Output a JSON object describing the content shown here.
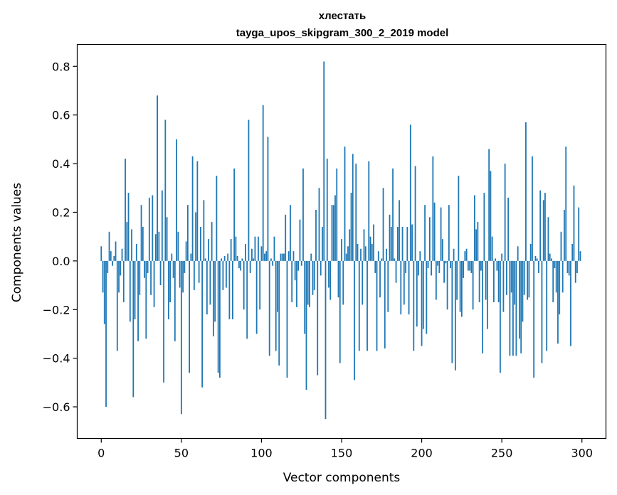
{
  "chart_data": {
    "type": "bar",
    "title": "хлестать",
    "subtitle": "tayga_upos_skipgram_300_2_2019 model",
    "xlabel": "Vector components",
    "ylabel": "Components values",
    "xlim": [
      -15,
      315
    ],
    "ylim": [
      -0.73,
      0.89
    ],
    "xticks": [
      0,
      50,
      100,
      150,
      200,
      250,
      300
    ],
    "xtick_labels": [
      "0",
      "50",
      "100",
      "150",
      "200",
      "250",
      "300"
    ],
    "yticks": [
      -0.6,
      -0.4,
      -0.2,
      0.0,
      0.2,
      0.4,
      0.6,
      0.8
    ],
    "ytick_labels": [
      "−0.6",
      "−0.4",
      "−0.2",
      "0.0",
      "0.2",
      "0.4",
      "0.6",
      "0.8"
    ],
    "bar_color": "#1f77b4",
    "grid": false,
    "values": [
      0.06,
      -0.13,
      -0.26,
      -0.6,
      -0.05,
      0.12,
      0.04,
      -0.02,
      0.02,
      0.08,
      -0.37,
      -0.13,
      -0.06,
      0.05,
      -0.17,
      0.42,
      0.16,
      0.28,
      -0.25,
      0.13,
      -0.56,
      -0.24,
      0.07,
      -0.33,
      -0.14,
      0.23,
      0.14,
      -0.07,
      -0.32,
      -0.05,
      0.26,
      -0.14,
      0.27,
      -0.19,
      0.11,
      0.68,
      0.12,
      -0.1,
      0.29,
      -0.5,
      0.58,
      0.18,
      -0.24,
      -0.17,
      0.03,
      -0.07,
      -0.33,
      0.5,
      0.12,
      -0.11,
      -0.63,
      -0.13,
      -0.05,
      0.08,
      0.23,
      -0.46,
      0.03,
      0.43,
      -0.12,
      0.2,
      0.41,
      -0.09,
      0.14,
      -0.52,
      0.25,
      0.01,
      -0.22,
      0.09,
      -0.18,
      0.16,
      -0.31,
      -0.25,
      0.35,
      -0.46,
      -0.48,
      0.01,
      -0.12,
      0.02,
      -0.11,
      0.03,
      -0.24,
      0.09,
      -0.24,
      0.38,
      0.1,
      0.02,
      -0.03,
      -0.04,
      0.01,
      -0.2,
      0.07,
      -0.32,
      0.58,
      -0.05,
      0.05,
      0.01,
      0.1,
      -0.3,
      0.1,
      -0.2,
      0.06,
      0.64,
      0.03,
      0.04,
      0.51,
      -0.39,
      0.01,
      -0.02,
      0.1,
      -0.37,
      -0.21,
      -0.43,
      0.03,
      0.03,
      0.03,
      0.19,
      -0.48,
      0.04,
      0.23,
      -0.17,
      0.04,
      -0.08,
      -0.19,
      -0.04,
      0.17,
      -0.02,
      0.38,
      -0.3,
      -0.53,
      -0.18,
      -0.19,
      0.03,
      -0.14,
      -0.12,
      0.21,
      -0.47,
      0.3,
      -0.06,
      0.14,
      0.82,
      -0.65,
      0.42,
      -0.11,
      -0.16,
      0.23,
      0.23,
      0.27,
      0.38,
      -0.15,
      -0.42,
      0.09,
      -0.18,
      0.47,
      0.03,
      0.06,
      0.13,
      0.28,
      0.44,
      -0.49,
      0.4,
      0.07,
      -0.37,
      0.05,
      -0.18,
      0.13,
      0.06,
      -0.37,
      0.41,
      0.1,
      0.07,
      0.15,
      -0.05,
      -0.37,
      0.04,
      -0.15,
      0.01,
      0.3,
      -0.36,
      0.05,
      -0.21,
      0.19,
      0.14,
      0.38,
      0.01,
      -0.09,
      0.14,
      0.25,
      -0.22,
      0.14,
      -0.18,
      -0.05,
      0.14,
      -0.22,
      0.56,
      0.15,
      -0.37,
      0.39,
      -0.27,
      -0.06,
      0.04,
      -0.35,
      -0.28,
      0.23,
      -0.3,
      -0.03,
      0.18,
      -0.06,
      0.43,
      0.24,
      -0.16,
      -0.02,
      -0.05,
      0.22,
      0.09,
      -0.09,
      -0.01,
      -0.2,
      0.23,
      -0.03,
      -0.42,
      0.05,
      -0.45,
      -0.16,
      0.35,
      -0.21,
      -0.23,
      -0.07,
      0.04,
      0.05,
      -0.04,
      -0.04,
      -0.05,
      -0.2,
      0.27,
      0.13,
      0.16,
      -0.17,
      -0.04,
      -0.38,
      0.28,
      -0.16,
      -0.28,
      0.46,
      0.37,
      0.1,
      -0.17,
      0.01,
      -0.04,
      -0.17,
      -0.46,
      0.03,
      -0.21,
      0.4,
      -0.14,
      0.26,
      -0.39,
      -0.13,
      -0.39,
      -0.18,
      -0.39,
      0.06,
      -0.32,
      -0.38,
      -0.25,
      -0.14,
      0.57,
      -0.16,
      -0.15,
      0.07,
      0.43,
      -0.48,
      0.02,
      0.01,
      -0.05,
      0.29,
      -0.42,
      0.25,
      0.28,
      -0.37,
      0.18,
      0.03,
      0.01,
      -0.17,
      -0.03,
      -0.13,
      -0.34,
      -0.22,
      0.12,
      -0.13,
      0.21,
      0.47,
      -0.05,
      -0.06,
      -0.35,
      0.07,
      0.31,
      -0.09,
      -0.05,
      0.22,
      0.04
    ]
  }
}
